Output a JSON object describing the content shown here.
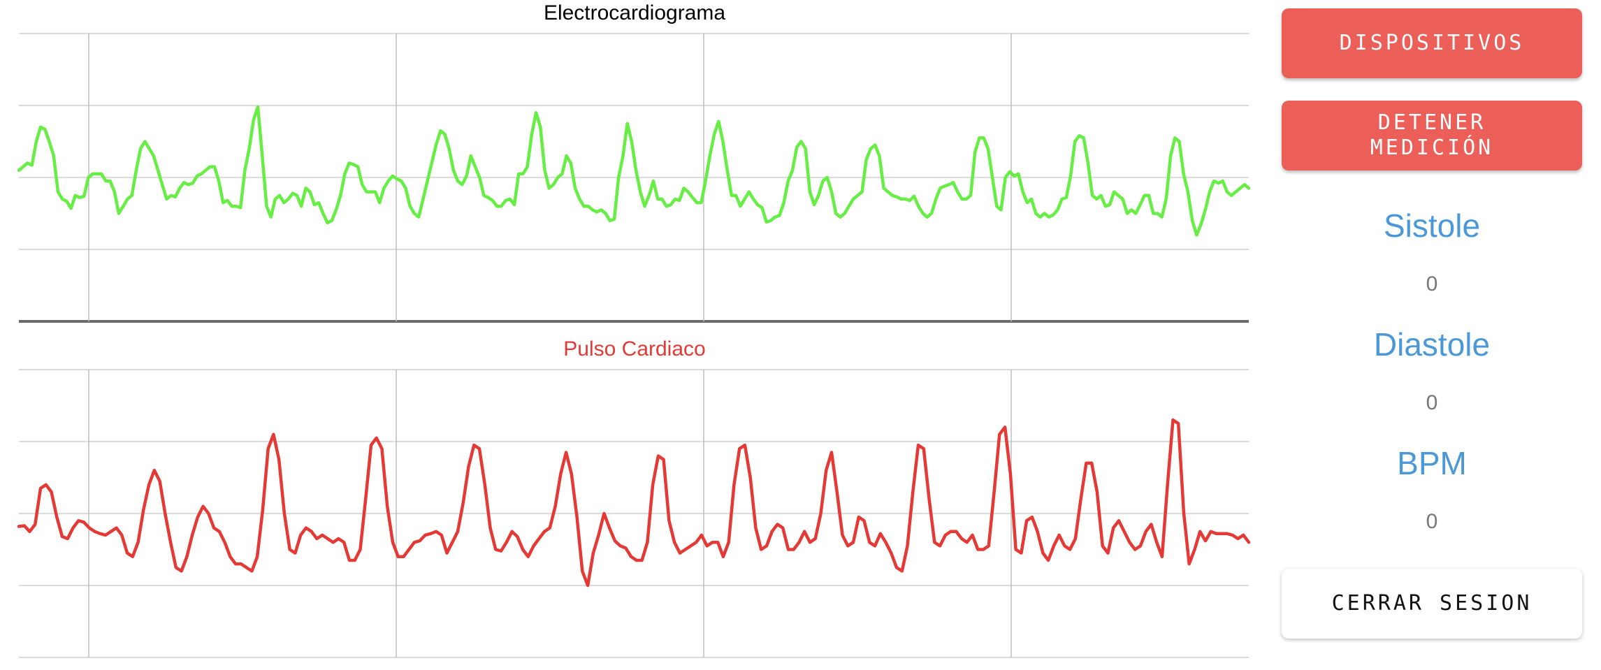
{
  "charts": {
    "ecg": {
      "title": "Electrocardiograma",
      "color": "#66ee44"
    },
    "pulse": {
      "title": "Pulso Cardiaco",
      "color": "#e53935"
    }
  },
  "chart_data": [
    {
      "type": "line",
      "title": "Electrocardiograma",
      "ylim": [
        0,
        4
      ],
      "grid": true,
      "series": [
        {
          "values": [
            2.1,
            2.15,
            2.2,
            2.17,
            2.5,
            2.7,
            2.67,
            2.5,
            2.3,
            1.8,
            1.7,
            1.67,
            1.57,
            1.75,
            1.72,
            1.74,
            2.0,
            2.05,
            2.05,
            2.05,
            1.95,
            1.95,
            1.8,
            1.5,
            1.6,
            1.7,
            1.75,
            2.1,
            2.4,
            2.5,
            2.4,
            2.3,
            2.1,
            1.9,
            1.7,
            1.75,
            1.73,
            1.85,
            1.93,
            1.9,
            1.92,
            2.02,
            2.05,
            2.1,
            2.15,
            2.15,
            1.95,
            1.65,
            1.68,
            1.6,
            1.6,
            1.58,
            2.1,
            2.4,
            2.8,
            2.98,
            2.3,
            1.6,
            1.45,
            1.7,
            1.75,
            1.65,
            1.7,
            1.78,
            1.75,
            1.6,
            1.85,
            1.8,
            1.62,
            1.65,
            1.5,
            1.37,
            1.4,
            1.55,
            1.75,
            2.05,
            2.2,
            2.18,
            2.15,
            1.9,
            1.8,
            1.8,
            1.8,
            1.65,
            1.85,
            1.95,
            2.02,
            1.98,
            1.95,
            1.85,
            1.6,
            1.5,
            1.45,
            1.7,
            1.95,
            2.2,
            2.45,
            2.65,
            2.6,
            2.4,
            2.1,
            1.95,
            1.9,
            2.02,
            2.3,
            2.15,
            2.0,
            1.75,
            1.72,
            1.68,
            1.6,
            1.6,
            1.68,
            1.7,
            1.62,
            2.05,
            2.05,
            2.15,
            2.6,
            2.9,
            2.7,
            2.1,
            1.85,
            1.9,
            2.0,
            2.05,
            2.3,
            2.2,
            1.85,
            1.7,
            1.6,
            1.6,
            1.55,
            1.52,
            1.55,
            1.5,
            1.4,
            1.42,
            2.0,
            2.3,
            2.75,
            2.5,
            2.1,
            1.8,
            1.6,
            1.75,
            1.95,
            1.7,
            1.7,
            1.6,
            1.62,
            1.7,
            1.68,
            1.85,
            1.8,
            1.72,
            1.65,
            1.65,
            1.95,
            2.3,
            2.6,
            2.78,
            2.5,
            2.1,
            1.75,
            1.75,
            1.6,
            1.7,
            1.8,
            1.7,
            1.62,
            1.58,
            1.38,
            1.4,
            1.45,
            1.47,
            1.65,
            1.95,
            2.1,
            2.42,
            2.5,
            2.4,
            1.8,
            1.62,
            1.75,
            1.95,
            2.0,
            1.8,
            1.5,
            1.45,
            1.5,
            1.6,
            1.7,
            1.75,
            1.8,
            2.25,
            2.4,
            2.45,
            2.3,
            1.85,
            1.8,
            1.75,
            1.73,
            1.7,
            1.7,
            1.68,
            1.74,
            1.6,
            1.5,
            1.45,
            1.5,
            1.7,
            1.85,
            1.88,
            1.9,
            1.93,
            1.8,
            1.7,
            1.7,
            1.75,
            2.35,
            2.55,
            2.55,
            2.4,
            2.0,
            1.6,
            1.55,
            2.0,
            2.08,
            2.02,
            2.05,
            1.8,
            1.65,
            1.7,
            1.5,
            1.45,
            1.5,
            1.45,
            1.48,
            1.55,
            1.7,
            1.72,
            2.02,
            2.5,
            2.58,
            2.55,
            2.2,
            1.75,
            1.7,
            1.75,
            1.6,
            1.62,
            1.8,
            1.75,
            1.7,
            1.5,
            1.55,
            1.5,
            1.62,
            1.75,
            1.75,
            1.5,
            1.5,
            1.45,
            1.7,
            2.3,
            2.55,
            2.5,
            2.05,
            1.8,
            1.4,
            1.2,
            1.35,
            1.55,
            1.8,
            1.95,
            1.92,
            1.95,
            1.8,
            1.75,
            1.8,
            1.85,
            1.9,
            1.85
          ]
        }
      ]
    },
    {
      "type": "line",
      "title": "Pulso Cardiaco",
      "ylim": [
        0,
        4
      ],
      "grid": true,
      "series": [
        {
          "values": [
            1.82,
            1.83,
            1.75,
            1.85,
            2.35,
            2.4,
            2.3,
            1.95,
            1.68,
            1.65,
            1.8,
            1.9,
            1.88,
            1.8,
            1.75,
            1.72,
            1.7,
            1.75,
            1.8,
            1.7,
            1.45,
            1.4,
            1.6,
            2.05,
            2.4,
            2.6,
            2.45,
            2.0,
            1.6,
            1.25,
            1.2,
            1.4,
            1.7,
            1.95,
            2.1,
            2.0,
            1.8,
            1.75,
            1.6,
            1.4,
            1.3,
            1.3,
            1.25,
            1.2,
            1.4,
            2.05,
            2.9,
            3.1,
            2.75,
            2.0,
            1.5,
            1.45,
            1.7,
            1.8,
            1.75,
            1.65,
            1.7,
            1.65,
            1.6,
            1.65,
            1.6,
            1.35,
            1.35,
            1.5,
            2.2,
            2.95,
            3.05,
            2.9,
            2.1,
            1.6,
            1.4,
            1.4,
            1.5,
            1.6,
            1.62,
            1.7,
            1.72,
            1.75,
            1.7,
            1.45,
            1.6,
            1.75,
            2.15,
            2.65,
            2.95,
            2.9,
            2.4,
            1.8,
            1.5,
            1.48,
            1.6,
            1.75,
            1.68,
            1.5,
            1.4,
            1.55,
            1.65,
            1.75,
            1.8,
            2.1,
            2.55,
            2.85,
            2.55,
            1.95,
            1.2,
            1.0,
            1.45,
            1.7,
            2.0,
            1.8,
            1.62,
            1.55,
            1.52,
            1.4,
            1.35,
            1.35,
            1.6,
            2.4,
            2.8,
            2.75,
            1.9,
            1.6,
            1.45,
            1.5,
            1.55,
            1.6,
            1.7,
            1.55,
            1.6,
            1.6,
            1.4,
            1.6,
            2.4,
            2.9,
            2.95,
            2.5,
            1.8,
            1.5,
            1.55,
            1.75,
            1.85,
            1.8,
            1.5,
            1.5,
            1.6,
            1.75,
            1.6,
            1.65,
            2.0,
            2.6,
            2.85,
            2.3,
            1.7,
            1.55,
            1.6,
            1.95,
            1.9,
            1.6,
            1.55,
            1.72,
            1.6,
            1.45,
            1.25,
            1.2,
            1.55,
            2.3,
            2.95,
            2.9,
            2.2,
            1.6,
            1.55,
            1.7,
            1.75,
            1.75,
            1.65,
            1.6,
            1.7,
            1.5,
            1.5,
            1.55,
            2.3,
            3.1,
            3.2,
            2.55,
            1.5,
            1.45,
            1.9,
            1.95,
            1.75,
            1.45,
            1.35,
            1.55,
            1.7,
            1.55,
            1.5,
            1.65,
            2.2,
            2.7,
            2.7,
            2.3,
            1.55,
            1.45,
            1.8,
            1.9,
            1.75,
            1.6,
            1.5,
            1.55,
            1.75,
            1.85,
            1.6,
            1.4,
            2.4,
            3.3,
            3.25,
            2.0,
            1.3,
            1.5,
            1.75,
            1.62,
            1.75,
            1.72,
            1.72,
            1.72,
            1.7,
            1.65,
            1.7,
            1.6
          ]
        }
      ]
    }
  ],
  "controls": {
    "devices_label": "DISPOSITIVOS",
    "stop_label": "DETENER MEDICIÓN",
    "logout_label": "CERRAR SESION"
  },
  "stats": {
    "systole_label": "Sistole",
    "systole_value": "0",
    "diastole_label": "Diastole",
    "diastole_value": "0",
    "bpm_label": "BPM",
    "bpm_value": "0"
  },
  "colors": {
    "accent_red": "#ec5f59",
    "label_blue": "#4a98d8",
    "ecg_line": "#66ee44",
    "pulse_line": "#e53935"
  }
}
